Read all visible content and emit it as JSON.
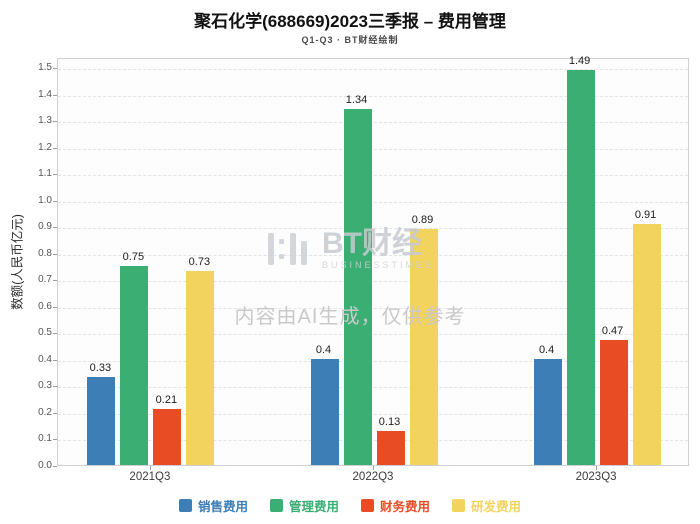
{
  "header": {
    "title": "聚石化学(688669)2023三季报 – 费用管理",
    "subtitle": "Q1-Q3 · BT财经绘制"
  },
  "watermark": {
    "logo_text": "BT财经",
    "logo_sub": "BUSINESSTIMES",
    "notice": "内容由AI生成，仅供参考"
  },
  "chart_data": {
    "type": "bar",
    "title": "聚石化学(688669)2023三季报 – 费用管理",
    "subtitle": "Q1-Q3 · BT财经绘制",
    "categories": [
      "2021Q3",
      "2022Q3",
      "2023Q3"
    ],
    "series": [
      {
        "name": "销售费用",
        "color": "#3c7eb5",
        "values": [
          0.33,
          0.4,
          0.4
        ]
      },
      {
        "name": "管理费用",
        "color": "#3bae73",
        "values": [
          0.75,
          1.34,
          1.49
        ]
      },
      {
        "name": "财务费用",
        "color": "#e74c25",
        "values": [
          0.21,
          0.13,
          0.47
        ]
      },
      {
        "name": "研发费用",
        "color": "#f1d35e",
        "values": [
          0.73,
          0.89,
          0.91
        ]
      }
    ],
    "xlabel": "",
    "ylabel": "数额(人民币亿元)",
    "ylim": [
      0,
      1.5
    ],
    "ytick_step": 0.1,
    "grid": true,
    "legend_position": "bottom"
  }
}
